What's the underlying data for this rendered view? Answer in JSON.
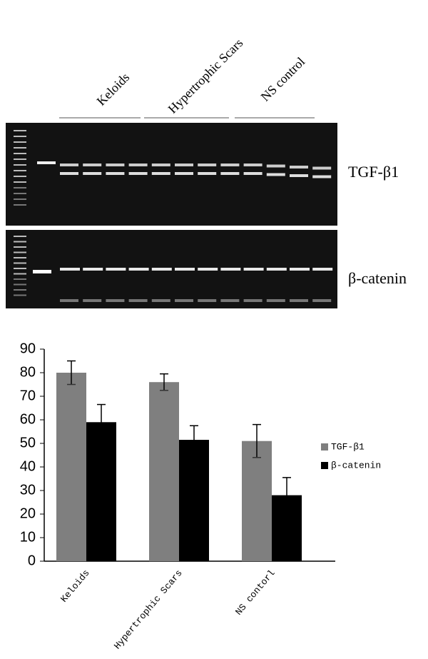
{
  "gel": {
    "group_labels": [
      "Keloids",
      "Hypertrophic Scars",
      "NS control"
    ],
    "panels": [
      {
        "label": "TGF-β1"
      },
      {
        "label": "β-catenin"
      }
    ]
  },
  "chart_data": {
    "type": "bar",
    "categories": [
      "Keloids",
      "Hypertrophic Scars",
      "NS contorl"
    ],
    "series": [
      {
        "name": "TGF-β1",
        "color": "#7f7f7f",
        "values": [
          80,
          76,
          51
        ],
        "errors": [
          5,
          3.5,
          7
        ]
      },
      {
        "name": "β-catenin",
        "color": "#000000",
        "values": [
          59,
          51.5,
          28
        ],
        "errors": [
          7.5,
          6,
          7.5
        ]
      }
    ],
    "ylim": [
      0,
      90
    ],
    "yticks": [
      0,
      10,
      20,
      30,
      40,
      50,
      60,
      70,
      80,
      90
    ],
    "legend": "right"
  }
}
